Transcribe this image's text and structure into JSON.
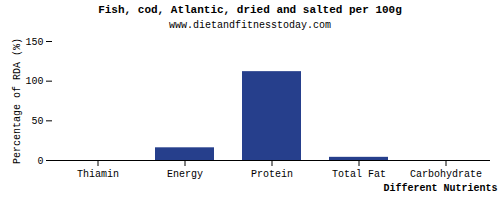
{
  "chart_data": {
    "type": "bar",
    "title": "Fish, cod, Atlantic, dried and salted per 100g",
    "subtitle": "www.dietandfitnesstoday.com",
    "x_label": "Different Nutrients",
    "y_label": "Percentage of RDA (%)",
    "categories": [
      "Thiamin",
      "Energy",
      "Protein",
      "Total Fat",
      "Carbohydrate"
    ],
    "values": [
      0,
      16,
      112,
      4,
      0
    ],
    "color": "#263f8c",
    "ylim": [
      0,
      150
    ],
    "yticks": [
      0,
      50,
      100,
      150
    ],
    "grid": false
  }
}
